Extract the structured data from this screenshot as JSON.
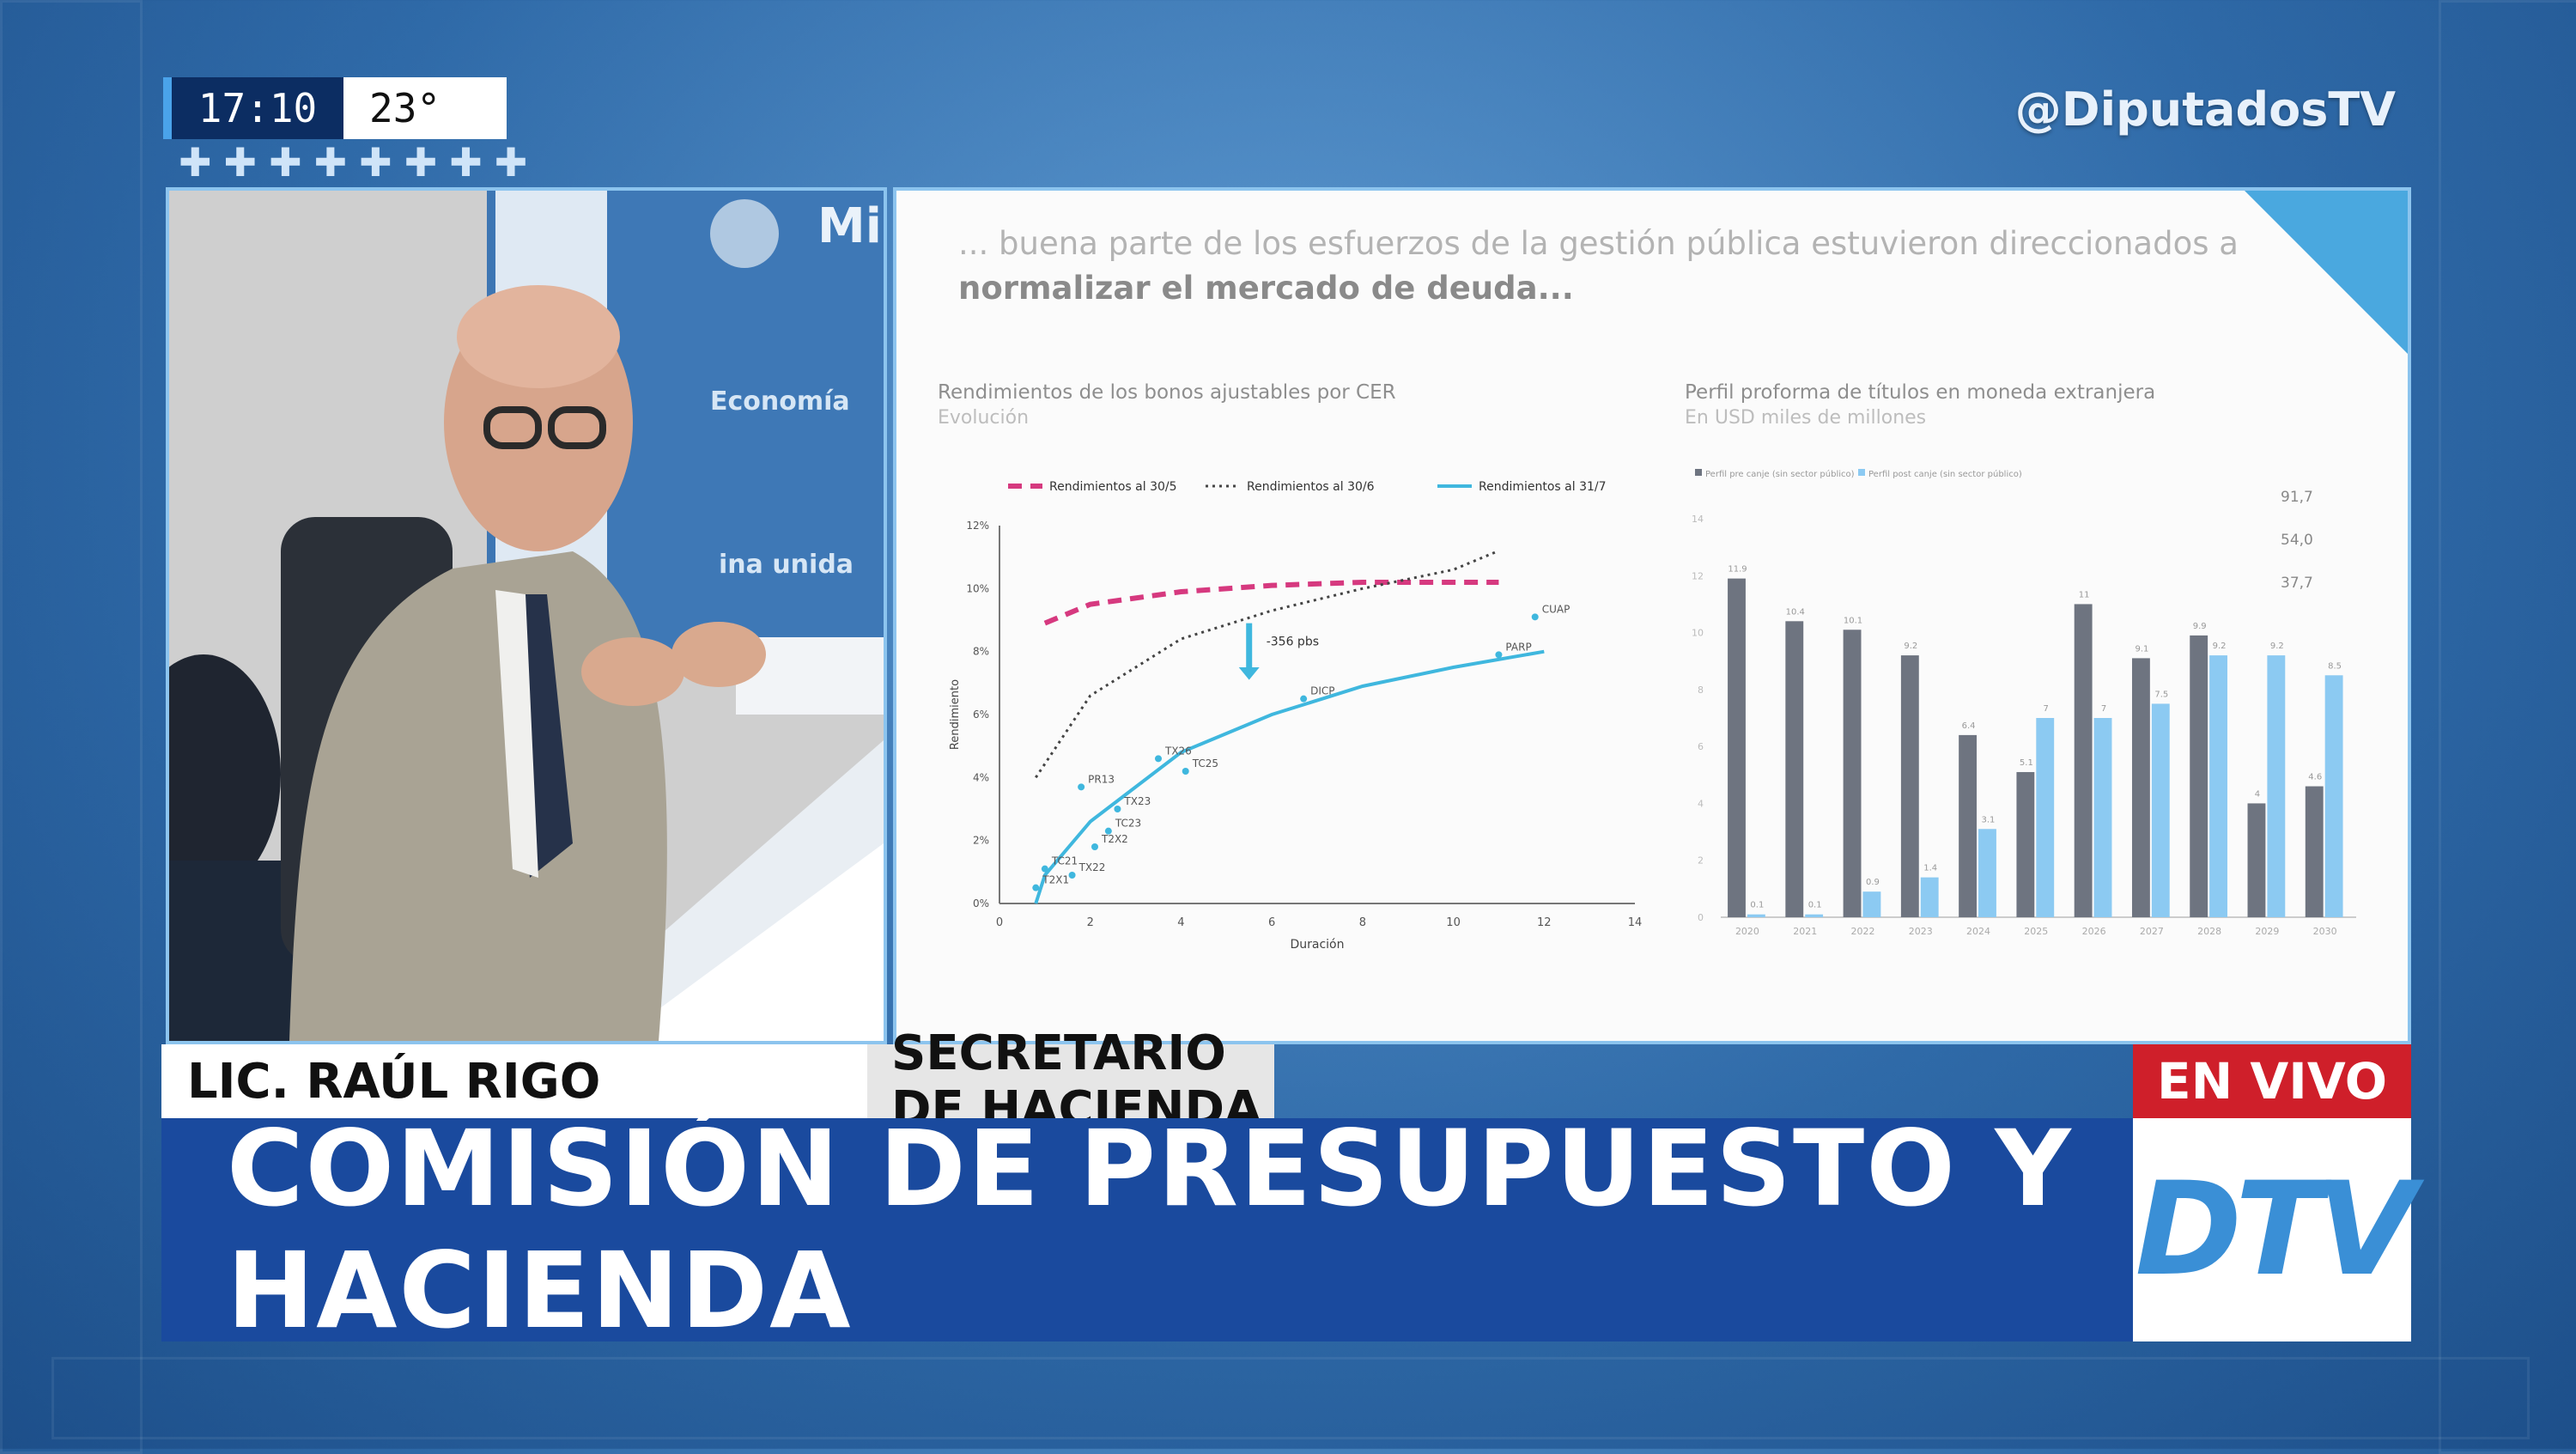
{
  "overlay": {
    "time": "17:10",
    "temperature": "23°",
    "plus_row": "✚✚✚✚✚✚✚✚",
    "handle": "@DiputadosTV"
  },
  "video": {
    "backdrop_text_1": "Mi",
    "backdrop_text_2": "Economía",
    "backdrop_text_3": "ina unida"
  },
  "slide": {
    "headline_line1": "... buena parte de los esfuerzos de la gestión pública estuvieron direccionados a",
    "headline_line2": "normalizar el mercado de deuda...",
    "left_chart_title": "Rendimientos de los bonos ajustables por CER",
    "left_chart_subtitle": "Evolución",
    "right_chart_title": "Perfil proforma de títulos en moneda extranjera",
    "right_chart_subtitle": "En USD miles de millones"
  },
  "chart_data": [
    {
      "type": "line",
      "title": "Rendimientos de los bonos ajustables por CER",
      "subtitle": "Evolución",
      "xlabel": "Duración",
      "ylabel": "Rendimiento",
      "xlim": [
        0,
        14
      ],
      "ylim": [
        0,
        12
      ],
      "x_ticks": [
        "0",
        "2",
        "4",
        "6",
        "8",
        "10",
        "12",
        "14"
      ],
      "y_ticks": [
        "0%",
        "2%",
        "4%",
        "6%",
        "8%",
        "10%",
        "12%"
      ],
      "legend": [
        "Rendimientos al 30/5",
        "Rendimientos al 30/6",
        "Rendimientos al 31/7"
      ],
      "legend_position": "top",
      "annotation": "-356 pbs",
      "points": [
        {
          "label": "CUAP",
          "x": 11.8,
          "y": 9.1
        },
        {
          "label": "PARP",
          "x": 11.0,
          "y": 7.9
        },
        {
          "label": "DICP",
          "x": 6.7,
          "y": 6.5
        },
        {
          "label": "TX26",
          "x": 3.5,
          "y": 4.6
        },
        {
          "label": "TC25",
          "x": 4.1,
          "y": 4.2
        },
        {
          "label": "PR13",
          "x": 1.8,
          "y": 3.7
        },
        {
          "label": "TX23",
          "x": 2.6,
          "y": 3.0
        },
        {
          "label": "TC23",
          "x": 2.4,
          "y": 2.3
        },
        {
          "label": "T2X2",
          "x": 2.1,
          "y": 1.8
        },
        {
          "label": "TX22",
          "x": 1.6,
          "y": 0.9
        },
        {
          "label": "TC21",
          "x": 1.0,
          "y": 1.1
        },
        {
          "label": "T2X1",
          "x": 0.8,
          "y": 0.5
        }
      ],
      "series": [
        {
          "name": "Rendimientos al 30/5",
          "x": [
            1.0,
            2,
            4,
            6,
            8,
            10,
            11
          ],
          "y": [
            8.9,
            9.5,
            9.9,
            10.1,
            10.2,
            10.2,
            10.2
          ]
        },
        {
          "name": "Rendimientos al 30/6",
          "x": [
            0.8,
            2,
            4,
            6,
            8,
            10,
            11
          ],
          "y": [
            4.0,
            6.6,
            8.4,
            9.3,
            10.0,
            10.6,
            11.2
          ]
        },
        {
          "name": "Rendimientos al 31/7",
          "x": [
            0.8,
            1,
            2,
            4,
            6,
            8,
            10,
            12
          ],
          "y": [
            0.0,
            0.9,
            2.6,
            4.8,
            6.0,
            6.9,
            7.5,
            8.0
          ]
        }
      ]
    },
    {
      "type": "bar",
      "title": "Perfil proforma de títulos en moneda extranjera",
      "subtitle": "En USD miles de millones",
      "categories": [
        "2020",
        "2021",
        "2022",
        "2023",
        "2024",
        "2025",
        "2026",
        "2027",
        "2028",
        "2029",
        "2030"
      ],
      "ylim": [
        0,
        14
      ],
      "y_ticks": [
        "0",
        "2",
        "4",
        "6",
        "8",
        "10",
        "12",
        "14"
      ],
      "legend": [
        "Perfil pre canje (sin sector público)",
        "Perfil post canje (sin sector público)"
      ],
      "legend_position": "top-left",
      "side_values": [
        "91,7",
        "54,0",
        "37,7"
      ],
      "series": [
        {
          "name": "Perfil pre canje (sin sector público)",
          "values": [
            11.9,
            10.4,
            10.1,
            9.2,
            6.4,
            5.1,
            11.0,
            9.1,
            9.9,
            4.0,
            4.6
          ]
        },
        {
          "name": "Perfil post canje (sin sector público)",
          "values": [
            0.1,
            0.1,
            0.9,
            1.4,
            3.1,
            7.0,
            7.0,
            7.5,
            9.2,
            9.2,
            8.5
          ]
        }
      ]
    }
  ],
  "lower_third": {
    "name": "LIC. RAÚL RIGO",
    "role": "SECRETARIO DE HACIENDA",
    "live": "EN VIVO",
    "banner": "COMISIÓN DE PRESUPUESTO Y HACIENDA",
    "logo": "DTV"
  },
  "colors": {
    "banner_blue": "#1a4a9e",
    "live_red": "#cf1f2a",
    "accent_light_blue": "#4aa8df",
    "series_pink": "#d6397f",
    "series_cyan": "#3fb7de",
    "bar_grey": "#6e7480",
    "bar_blue": "#8ccaf2"
  }
}
